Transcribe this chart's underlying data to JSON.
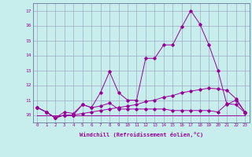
{
  "xlabel": "Windchill (Refroidissement éolien,°C)",
  "background_color": "#c8eded",
  "line_color": "#990099",
  "x": [
    0,
    1,
    2,
    3,
    4,
    5,
    6,
    7,
    8,
    9,
    10,
    11,
    12,
    13,
    14,
    15,
    16,
    17,
    18,
    19,
    20,
    21,
    22,
    23
  ],
  "line1": [
    10.5,
    10.2,
    9.8,
    10.2,
    10.1,
    10.7,
    10.5,
    11.5,
    12.9,
    11.5,
    11.0,
    11.0,
    13.8,
    13.8,
    14.7,
    14.7,
    15.9,
    17.0,
    16.1,
    14.7,
    13.0,
    10.7,
    11.0,
    10.2
  ],
  "line2": [
    10.5,
    10.2,
    9.8,
    10.0,
    10.0,
    10.7,
    10.5,
    10.6,
    10.8,
    10.4,
    10.4,
    10.4,
    10.4,
    10.4,
    10.4,
    10.3,
    10.3,
    10.3,
    10.3,
    10.3,
    10.2,
    10.75,
    10.7,
    10.15
  ],
  "line3": [
    10.5,
    10.2,
    9.8,
    10.0,
    10.0,
    10.1,
    10.2,
    10.3,
    10.4,
    10.5,
    10.6,
    10.7,
    10.9,
    11.0,
    11.2,
    11.3,
    11.5,
    11.6,
    11.7,
    11.8,
    11.75,
    11.65,
    11.1,
    10.2
  ],
  "line4": [
    10.0,
    10.0,
    10.0,
    10.0,
    10.0,
    10.0,
    10.0,
    10.0,
    10.0,
    10.0,
    10.0,
    10.0,
    10.0,
    10.0,
    10.0,
    10.0,
    10.0,
    10.0,
    10.0,
    10.0,
    10.0,
    10.0,
    10.0,
    10.0
  ],
  "ylim": [
    9.5,
    17.5
  ],
  "yticks": [
    10,
    11,
    12,
    13,
    14,
    15,
    16,
    17
  ],
  "xticks": [
    0,
    1,
    2,
    3,
    4,
    5,
    6,
    7,
    8,
    9,
    10,
    11,
    12,
    13,
    14,
    15,
    16,
    17,
    18,
    19,
    20,
    21,
    22,
    23
  ]
}
